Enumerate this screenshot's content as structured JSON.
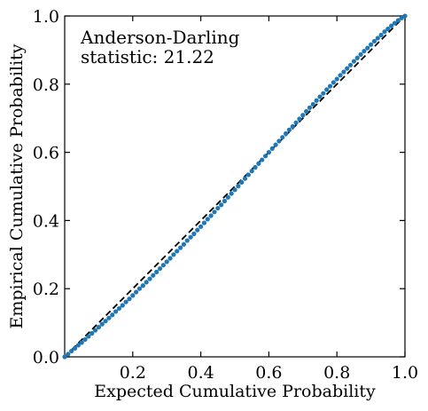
{
  "chart_data": {
    "type": "scatter",
    "xlabel": "Expected Cumulative Probability",
    "ylabel": "Empirical Cumulative Probability",
    "xlim": [
      0,
      1
    ],
    "ylim": [
      0,
      1
    ],
    "x_ticks": [
      0.2,
      0.4,
      0.6,
      0.8,
      1.0
    ],
    "x_tick_labels": [
      "0.2",
      "0.4",
      "0.6",
      "0.8",
      "1.0"
    ],
    "y_ticks": [
      0.0,
      0.2,
      0.4,
      0.6,
      0.8,
      1.0
    ],
    "y_tick_labels": [
      "0.0",
      "0.2",
      "0.4",
      "0.6",
      "0.8",
      "1.0"
    ],
    "grid": false,
    "annotation": {
      "line1": "Anderson-Darling",
      "line2": "statistic:  21.22"
    },
    "reference_line": {
      "x": [
        0,
        1
      ],
      "y": [
        0,
        1
      ],
      "style": "dashed",
      "color": "#000000"
    },
    "marker_color": "#1f77b4",
    "points": {
      "x": [
        0.0,
        0.01,
        0.02,
        0.03,
        0.04,
        0.05,
        0.06,
        0.07,
        0.08,
        0.09,
        0.1,
        0.11,
        0.12,
        0.13,
        0.14,
        0.15,
        0.16,
        0.17,
        0.18,
        0.19,
        0.2,
        0.21,
        0.22,
        0.23,
        0.24,
        0.25,
        0.26,
        0.27,
        0.28,
        0.29,
        0.3,
        0.31,
        0.32,
        0.33,
        0.34,
        0.35,
        0.36,
        0.37,
        0.38,
        0.39,
        0.4,
        0.41,
        0.42,
        0.43,
        0.44,
        0.45,
        0.46,
        0.47,
        0.48,
        0.49,
        0.5,
        0.51,
        0.52,
        0.53,
        0.54,
        0.55,
        0.56,
        0.57,
        0.58,
        0.59,
        0.6,
        0.61,
        0.62,
        0.63,
        0.64,
        0.65,
        0.66,
        0.67,
        0.68,
        0.69,
        0.7,
        0.71,
        0.72,
        0.73,
        0.74,
        0.75,
        0.76,
        0.77,
        0.78,
        0.79,
        0.8,
        0.81,
        0.82,
        0.83,
        0.84,
        0.85,
        0.86,
        0.87,
        0.88,
        0.89,
        0.9,
        0.91,
        0.92,
        0.93,
        0.94,
        0.95,
        0.96,
        0.97,
        0.98,
        0.99,
        1.0
      ],
      "y": [
        0.0,
        0.008,
        0.017,
        0.025,
        0.034,
        0.042,
        0.051,
        0.06,
        0.069,
        0.078,
        0.087,
        0.096,
        0.105,
        0.114,
        0.123,
        0.133,
        0.142,
        0.151,
        0.161,
        0.17,
        0.18,
        0.19,
        0.2,
        0.209,
        0.219,
        0.229,
        0.239,
        0.249,
        0.259,
        0.269,
        0.279,
        0.289,
        0.3,
        0.31,
        0.32,
        0.33,
        0.341,
        0.351,
        0.361,
        0.372,
        0.382,
        0.393,
        0.404,
        0.414,
        0.425,
        0.436,
        0.446,
        0.457,
        0.468,
        0.479,
        0.49,
        0.501,
        0.512,
        0.523,
        0.534,
        0.545,
        0.556,
        0.567,
        0.578,
        0.589,
        0.6,
        0.611,
        0.622,
        0.633,
        0.644,
        0.655,
        0.666,
        0.676,
        0.687,
        0.698,
        0.709,
        0.72,
        0.731,
        0.741,
        0.752,
        0.763,
        0.773,
        0.784,
        0.794,
        0.805,
        0.815,
        0.826,
        0.836,
        0.846,
        0.856,
        0.867,
        0.877,
        0.887,
        0.897,
        0.906,
        0.916,
        0.926,
        0.935,
        0.944,
        0.954,
        0.962,
        0.971,
        0.979,
        0.987,
        0.994,
        1.0
      ]
    }
  }
}
